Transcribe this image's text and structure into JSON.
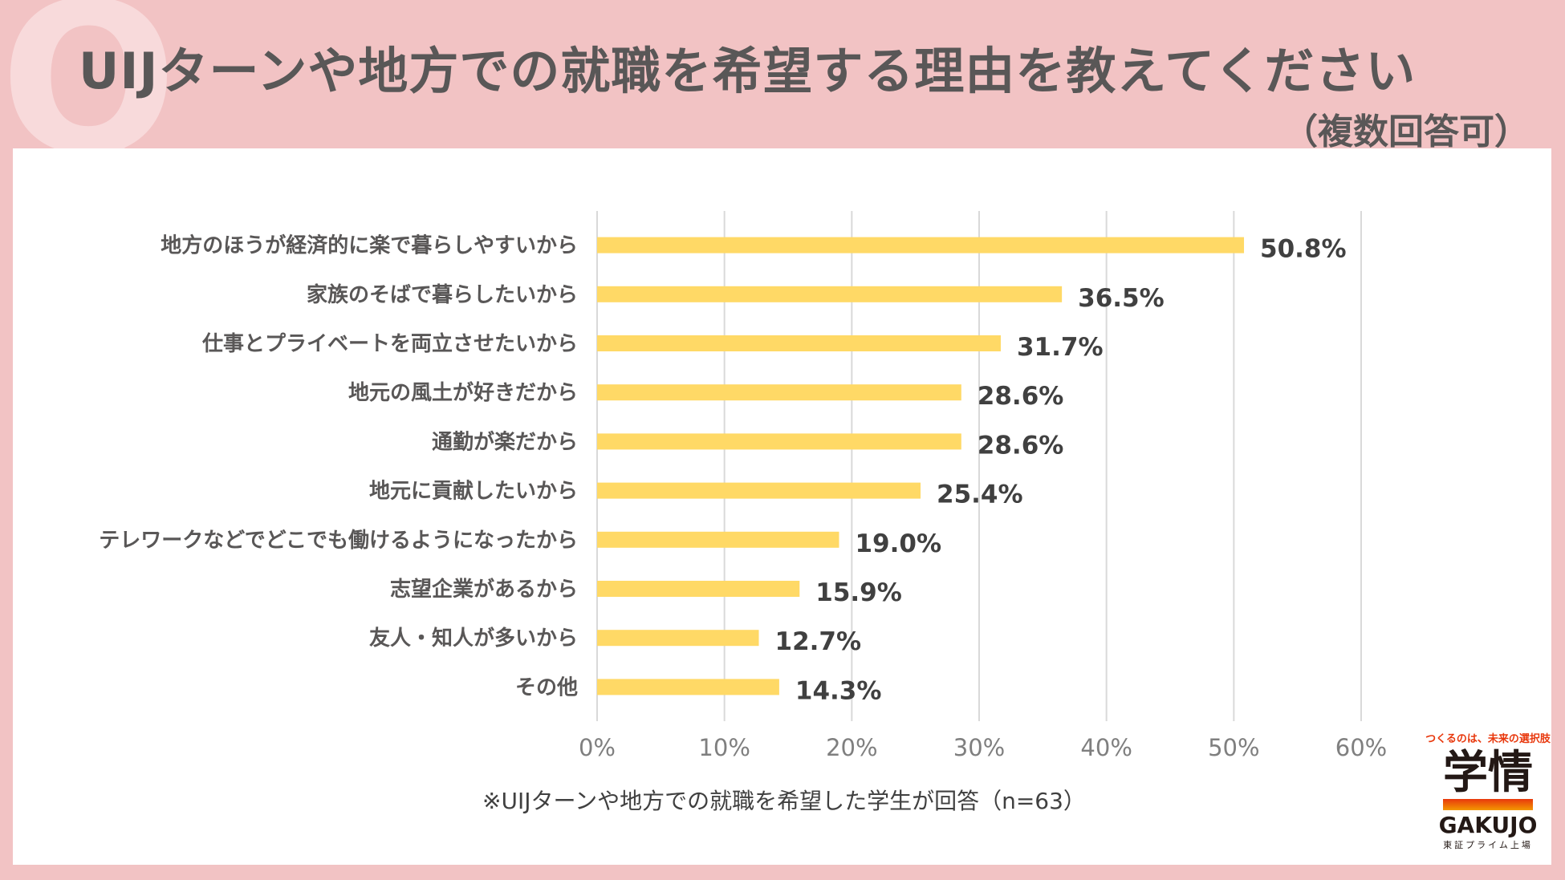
{
  "header": {
    "q_mark": "Q",
    "title": "UIJターンや地方での就職を希望する理由を教えてください",
    "subtitle": "（複数回答可）"
  },
  "chart_data": {
    "type": "bar",
    "orientation": "horizontal",
    "categories": [
      "地方のほうが経済的に楽で暮らしやすいから",
      "家族のそばで暮らしたいから",
      "仕事とプライベートを両立させたいから",
      "地元の風土が好きだから",
      "通勤が楽だから",
      "地元に貢献したいから",
      "テレワークなどでどこでも働けるようになったから",
      "志望企業があるから",
      "友人・知人が多いから",
      "その他"
    ],
    "values": [
      50.8,
      36.5,
      31.7,
      28.6,
      28.6,
      25.4,
      19.0,
      15.9,
      12.7,
      14.3
    ],
    "value_labels": [
      "50.8%",
      "36.5%",
      "31.7%",
      "28.6%",
      "28.6%",
      "25.4%",
      "19.0%",
      "15.9%",
      "12.7%",
      "14.3%"
    ],
    "xlim": [
      0,
      60
    ],
    "x_ticks": [
      0,
      10,
      20,
      30,
      40,
      50,
      60
    ],
    "x_tick_labels": [
      "0%",
      "10%",
      "20%",
      "30%",
      "40%",
      "50%",
      "60%"
    ],
    "grid": true,
    "bar_color": "#ffd966"
  },
  "note": "※UIJターンや地方での就職を希望した学生が回答（n=63）",
  "logo": {
    "tagline": "つくるのは、未来の選択肢",
    "name_jp": "学情",
    "name_en": "GAKUJO",
    "sub": "東証プライム上場"
  }
}
